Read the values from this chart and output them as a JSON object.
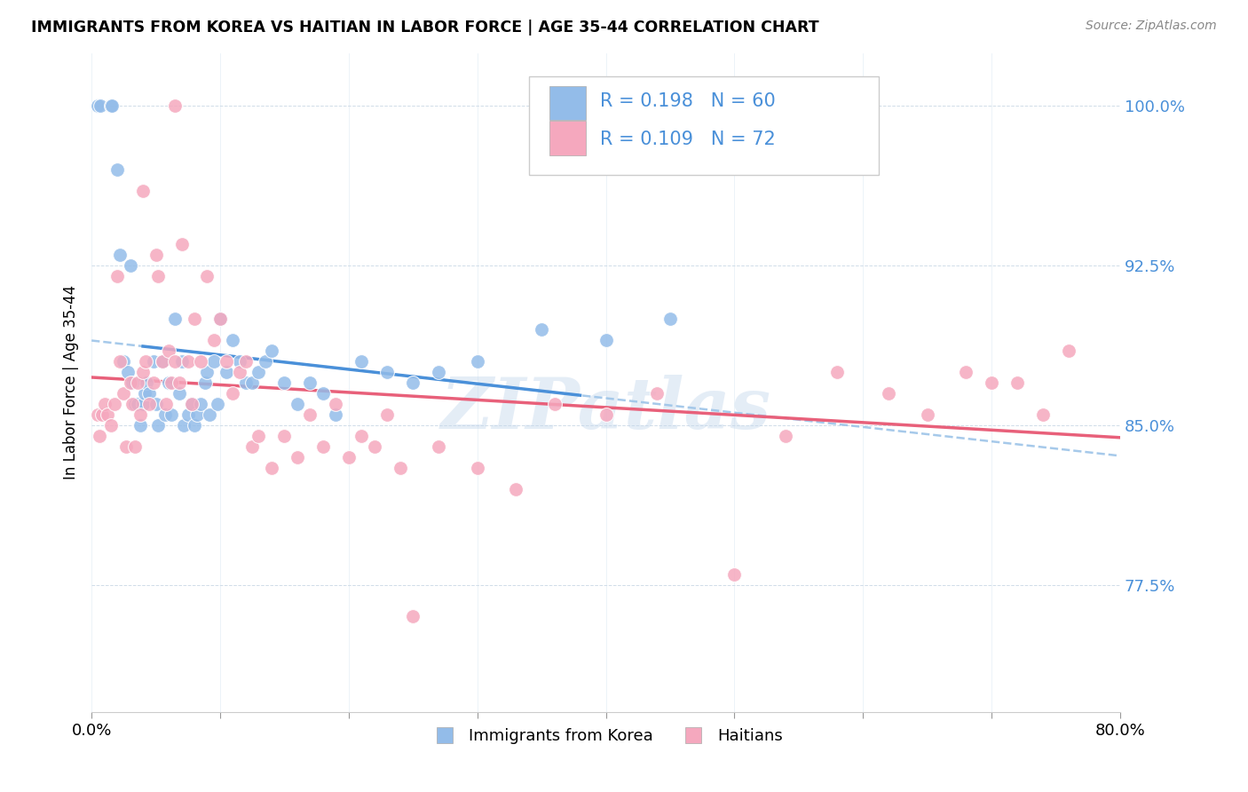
{
  "title": "IMMIGRANTS FROM KOREA VS HAITIAN IN LABOR FORCE | AGE 35-44 CORRELATION CHART",
  "source": "Source: ZipAtlas.com",
  "ylabel": "In Labor Force | Age 35-44",
  "xlim": [
    0.0,
    0.8
  ],
  "ylim": [
    0.715,
    1.025
  ],
  "yticks": [
    0.775,
    0.85,
    0.925,
    1.0
  ],
  "ytick_labels": [
    "77.5%",
    "85.0%",
    "92.5%",
    "100.0%"
  ],
  "xtick_positions": [
    0.0,
    0.1,
    0.2,
    0.3,
    0.4,
    0.5,
    0.6,
    0.7,
    0.8
  ],
  "xtick_labels_show": {
    "0.0": "0.0%",
    "0.8": "80.0%"
  },
  "korea_color": "#93bce9",
  "haiti_color": "#f5a8be",
  "korea_line_color": "#4a90d9",
  "haiti_line_color": "#e8607a",
  "dashed_line_color": "#9dc4e8",
  "legend_text_color": "#4a90d9",
  "R_korea": 0.198,
  "N_korea": 60,
  "R_haiti": 0.109,
  "N_haiti": 72,
  "watermark": "ZIPatlas",
  "korea_x": [
    0.005,
    0.007,
    0.015,
    0.016,
    0.02,
    0.022,
    0.025,
    0.028,
    0.03,
    0.032,
    0.034,
    0.036,
    0.038,
    0.04,
    0.041,
    0.043,
    0.045,
    0.048,
    0.05,
    0.052,
    0.055,
    0.057,
    0.06,
    0.062,
    0.065,
    0.068,
    0.07,
    0.072,
    0.075,
    0.078,
    0.08,
    0.082,
    0.085,
    0.088,
    0.09,
    0.092,
    0.095,
    0.098,
    0.1,
    0.105,
    0.11,
    0.115,
    0.12,
    0.125,
    0.13,
    0.135,
    0.14,
    0.15,
    0.16,
    0.17,
    0.18,
    0.19,
    0.21,
    0.23,
    0.25,
    0.27,
    0.3,
    0.35,
    0.4,
    0.45
  ],
  "korea_y": [
    1.0,
    1.0,
    1.0,
    1.0,
    0.97,
    0.93,
    0.88,
    0.875,
    0.925,
    0.87,
    0.86,
    0.86,
    0.85,
    0.86,
    0.865,
    0.87,
    0.865,
    0.88,
    0.86,
    0.85,
    0.88,
    0.855,
    0.87,
    0.855,
    0.9,
    0.865,
    0.88,
    0.85,
    0.855,
    0.86,
    0.85,
    0.855,
    0.86,
    0.87,
    0.875,
    0.855,
    0.88,
    0.86,
    0.9,
    0.875,
    0.89,
    0.88,
    0.87,
    0.87,
    0.875,
    0.88,
    0.885,
    0.87,
    0.86,
    0.87,
    0.865,
    0.855,
    0.88,
    0.875,
    0.87,
    0.875,
    0.88,
    0.895,
    0.89,
    0.9
  ],
  "haiti_x": [
    0.005,
    0.006,
    0.008,
    0.01,
    0.012,
    0.015,
    0.018,
    0.02,
    0.022,
    0.025,
    0.027,
    0.03,
    0.032,
    0.034,
    0.036,
    0.038,
    0.04,
    0.042,
    0.045,
    0.048,
    0.05,
    0.052,
    0.055,
    0.058,
    0.06,
    0.062,
    0.065,
    0.068,
    0.07,
    0.075,
    0.078,
    0.08,
    0.085,
    0.09,
    0.095,
    0.1,
    0.105,
    0.11,
    0.115,
    0.12,
    0.125,
    0.13,
    0.14,
    0.15,
    0.16,
    0.17,
    0.18,
    0.19,
    0.2,
    0.21,
    0.22,
    0.23,
    0.24,
    0.25,
    0.27,
    0.3,
    0.33,
    0.36,
    0.4,
    0.44,
    0.5,
    0.54,
    0.58,
    0.62,
    0.65,
    0.68,
    0.7,
    0.72,
    0.74,
    0.76,
    0.04,
    0.065
  ],
  "haiti_y": [
    0.855,
    0.845,
    0.855,
    0.86,
    0.855,
    0.85,
    0.86,
    0.92,
    0.88,
    0.865,
    0.84,
    0.87,
    0.86,
    0.84,
    0.87,
    0.855,
    0.875,
    0.88,
    0.86,
    0.87,
    0.93,
    0.92,
    0.88,
    0.86,
    0.885,
    0.87,
    0.88,
    0.87,
    0.935,
    0.88,
    0.86,
    0.9,
    0.88,
    0.92,
    0.89,
    0.9,
    0.88,
    0.865,
    0.875,
    0.88,
    0.84,
    0.845,
    0.83,
    0.845,
    0.835,
    0.855,
    0.84,
    0.86,
    0.835,
    0.845,
    0.84,
    0.855,
    0.83,
    0.76,
    0.84,
    0.83,
    0.82,
    0.86,
    0.855,
    0.865,
    0.78,
    0.845,
    0.875,
    0.865,
    0.855,
    0.875,
    0.87,
    0.87,
    0.855,
    0.885,
    0.96,
    1.0
  ],
  "korea_line_x_start": 0.04,
  "korea_line_x_end": 0.38,
  "dashed_line_x_start": 0.0,
  "dashed_line_x_end": 0.8
}
